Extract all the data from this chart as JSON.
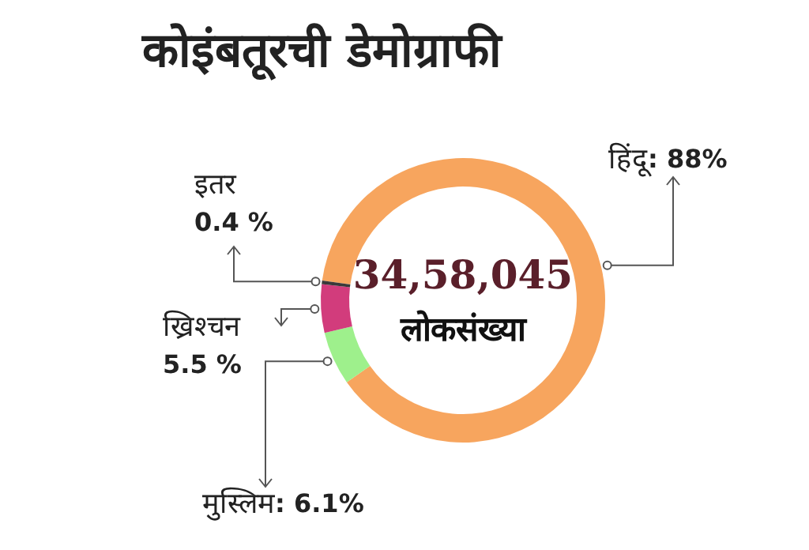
{
  "chart_data": {
    "type": "donut",
    "title": "कोइंबतूरची डेमोग्राफी",
    "categories": [
      "हिंदू",
      "मुस्लिम",
      "ख्रिश्चन",
      "इतर"
    ],
    "values": [
      88,
      6.1,
      5.5,
      0.4
    ],
    "colors": [
      "#f7a55e",
      "#9ef08c",
      "#d23c7c",
      "#3a3a3a"
    ],
    "value_labels": [
      ": 88%",
      ": 6.1%",
      "5.5 %",
      "0.4 %"
    ],
    "annotations": [
      "34,58,045",
      "लोकसंख्या"
    ],
    "legend": false
  }
}
